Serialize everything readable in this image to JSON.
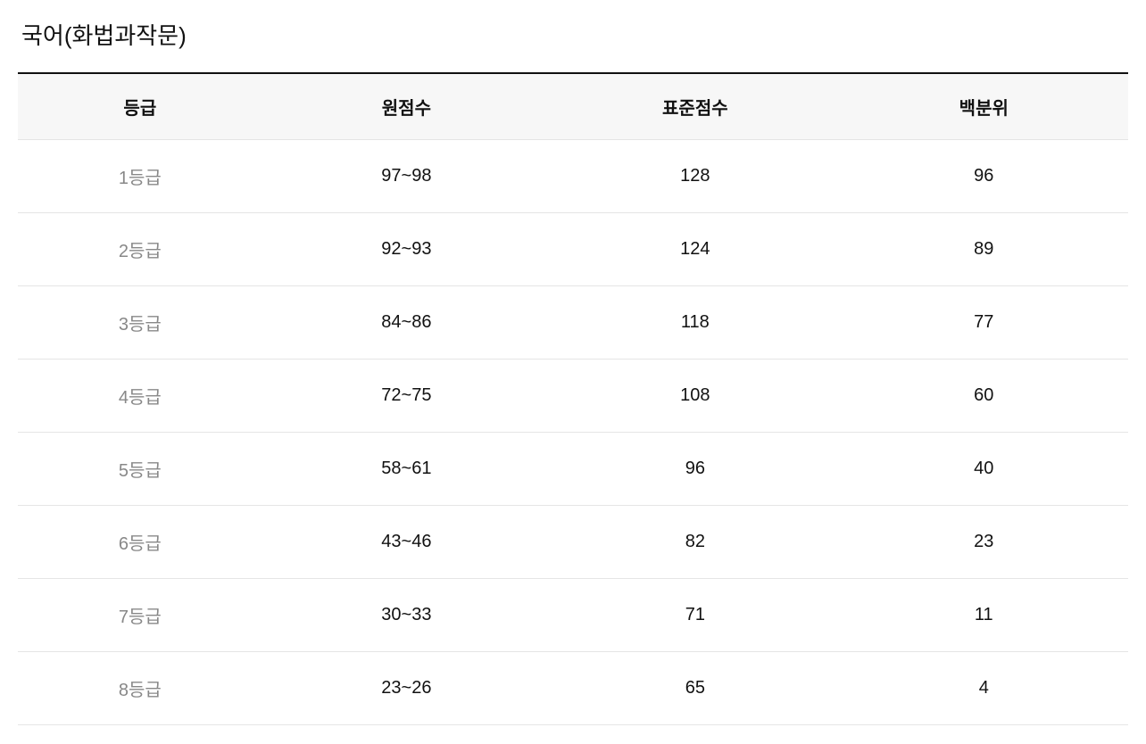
{
  "title": "국어(화법과작문)",
  "table": {
    "columns": [
      "등급",
      "원점수",
      "표준점수",
      "백분위"
    ],
    "rows": [
      {
        "grade": "1등급",
        "raw_score": "97~98",
        "standard_score": "128",
        "percentile": "96"
      },
      {
        "grade": "2등급",
        "raw_score": "92~93",
        "standard_score": "124",
        "percentile": "89"
      },
      {
        "grade": "3등급",
        "raw_score": "84~86",
        "standard_score": "118",
        "percentile": "77"
      },
      {
        "grade": "4등급",
        "raw_score": "72~75",
        "standard_score": "108",
        "percentile": "60"
      },
      {
        "grade": "5등급",
        "raw_score": "58~61",
        "standard_score": "96",
        "percentile": "40"
      },
      {
        "grade": "6등급",
        "raw_score": "43~46",
        "standard_score": "82",
        "percentile": "23"
      },
      {
        "grade": "7등급",
        "raw_score": "30~33",
        "standard_score": "71",
        "percentile": "11"
      },
      {
        "grade": "8등급",
        "raw_score": "23~26",
        "standard_score": "65",
        "percentile": "4"
      }
    ],
    "styling": {
      "header_bg_color": "#f7f7f7",
      "header_border_top_color": "#111111",
      "row_border_color": "#e5e5e5",
      "grade_text_color": "#888888",
      "cell_text_color": "#111111",
      "title_font_size": 26,
      "header_font_size": 20,
      "cell_font_size": 20,
      "header_font_weight": 700,
      "cell_font_weight": 400
    }
  }
}
